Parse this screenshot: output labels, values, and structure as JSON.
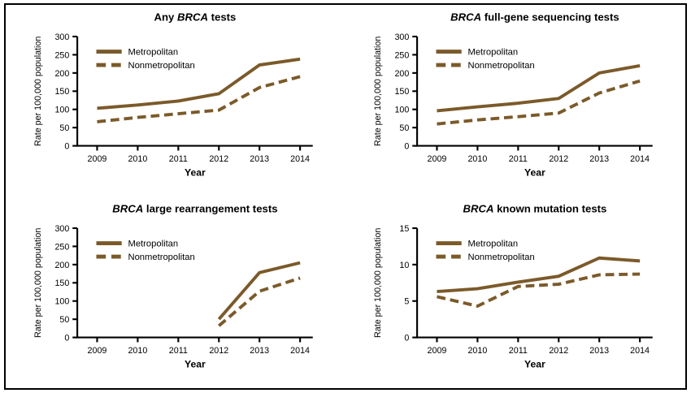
{
  "figure": {
    "background": "#ffffff",
    "border_color": "#000000",
    "line_color": "#7B5A2A",
    "axis_color": "#000000",
    "text_color": "#000000",
    "xlabel": "Year",
    "ylabel": "Rate per 100,000 population",
    "legend": [
      {
        "label": "Metropolitan",
        "style": "solid"
      },
      {
        "label": "Nonmetropolitan",
        "style": "dashed"
      }
    ]
  },
  "chart_data": [
    {
      "type": "line",
      "title": "Any BRCA tests",
      "title_parts": [
        {
          "text": "Any ",
          "italic": false
        },
        {
          "text": "BRCA",
          "italic": true
        },
        {
          "text": " tests",
          "italic": false
        }
      ],
      "xlabel": "Year",
      "ylabel": "Rate per 100,000 population",
      "x": [
        "2009",
        "2010",
        "2011",
        "2012",
        "2013",
        "2014"
      ],
      "ylim": [
        0,
        300
      ],
      "yticks": [
        0,
        50,
        100,
        150,
        200,
        250,
        300
      ],
      "grid": false,
      "legend_position": "top-left",
      "series": [
        {
          "name": "Metropolitan",
          "style": "solid",
          "values": [
            103,
            112,
            123,
            143,
            222,
            238
          ]
        },
        {
          "name": "Nonmetropolitan",
          "style": "dashed",
          "values": [
            66,
            78,
            88,
            98,
            160,
            190
          ]
        }
      ]
    },
    {
      "type": "line",
      "title": "BRCA full-gene sequencing tests",
      "title_parts": [
        {
          "text": "BRCA",
          "italic": true
        },
        {
          "text": " full-gene sequencing tests",
          "italic": false
        }
      ],
      "xlabel": "Year",
      "ylabel": "Rate per 100,000 population",
      "x": [
        "2009",
        "2010",
        "2011",
        "2012",
        "2013",
        "2014"
      ],
      "ylim": [
        0,
        300
      ],
      "yticks": [
        0,
        50,
        100,
        150,
        200,
        250,
        300
      ],
      "grid": false,
      "legend_position": "top-left",
      "series": [
        {
          "name": "Metropolitan",
          "style": "solid",
          "values": [
            96,
            107,
            117,
            130,
            200,
            220
          ]
        },
        {
          "name": "Nonmetropolitan",
          "style": "dashed",
          "values": [
            60,
            71,
            80,
            90,
            145,
            178
          ]
        }
      ]
    },
    {
      "type": "line",
      "title": "BRCA large rearrangement tests",
      "title_parts": [
        {
          "text": "BRCA",
          "italic": true
        },
        {
          "text": " large rearrangement tests",
          "italic": false
        }
      ],
      "xlabel": "Year",
      "ylabel": "Rate per 100,000 population",
      "x": [
        "2009",
        "2010",
        "2011",
        "2012",
        "2013",
        "2014"
      ],
      "ylim": [
        0,
        300
      ],
      "yticks": [
        0,
        50,
        100,
        150,
        200,
        250,
        300
      ],
      "grid": false,
      "legend_position": "top-left",
      "series": [
        {
          "name": "Metropolitan",
          "style": "solid",
          "values": [
            null,
            null,
            null,
            50,
            178,
            205
          ]
        },
        {
          "name": "Nonmetropolitan",
          "style": "dashed",
          "values": [
            null,
            null,
            null,
            32,
            127,
            163
          ]
        }
      ]
    },
    {
      "type": "line",
      "title": "BRCA known mutation tests",
      "title_parts": [
        {
          "text": "BRCA",
          "italic": true
        },
        {
          "text": " known mutation tests",
          "italic": false
        }
      ],
      "xlabel": "Year",
      "ylabel": "Rate per 100,000 population",
      "x": [
        "2009",
        "2010",
        "2011",
        "2012",
        "2013",
        "2014"
      ],
      "ylim": [
        0,
        15
      ],
      "yticks": [
        0,
        5,
        10,
        15
      ],
      "grid": false,
      "legend_position": "top-left",
      "series": [
        {
          "name": "Metropolitan",
          "style": "solid",
          "values": [
            6.3,
            6.7,
            7.6,
            8.4,
            10.9,
            10.5
          ]
        },
        {
          "name": "Nonmetropolitan",
          "style": "dashed",
          "values": [
            5.6,
            4.3,
            7.0,
            7.3,
            8.6,
            8.7
          ]
        }
      ]
    }
  ]
}
